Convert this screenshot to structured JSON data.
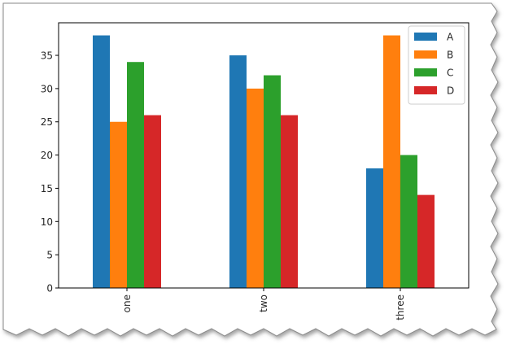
{
  "chart_data": {
    "type": "bar",
    "categories": [
      "one",
      "two",
      "three"
    ],
    "series": [
      {
        "name": "A",
        "values": [
          38,
          35,
          18
        ],
        "color": "#1f77b4"
      },
      {
        "name": "B",
        "values": [
          25,
          30,
          38
        ],
        "color": "#ff7f0e"
      },
      {
        "name": "C",
        "values": [
          34,
          32,
          20
        ],
        "color": "#2ca02c"
      },
      {
        "name": "D",
        "values": [
          26,
          26,
          14
        ],
        "color": "#d62728"
      }
    ],
    "yticks": [
      0,
      5,
      10,
      15,
      20,
      25,
      30,
      35
    ],
    "ylim": [
      0,
      39.9
    ],
    "grid": false,
    "legend_position": "top-right",
    "xtick_rotation": "vertical"
  }
}
